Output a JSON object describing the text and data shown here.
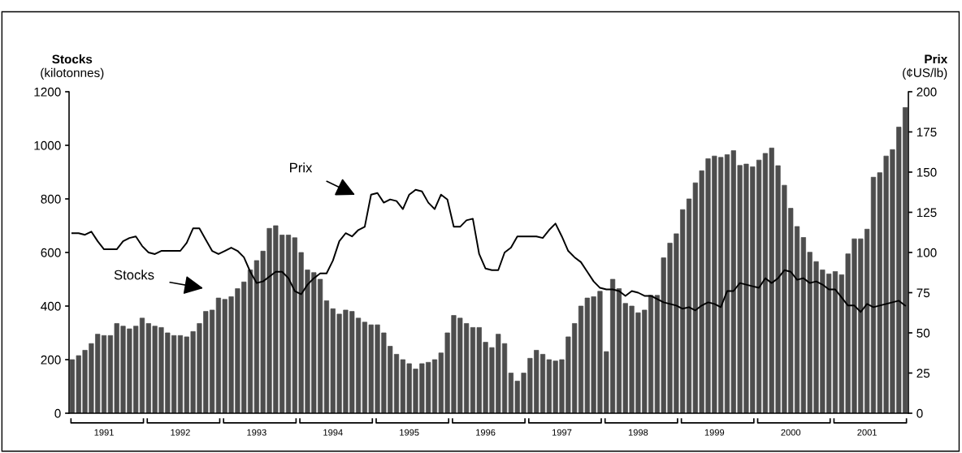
{
  "chart_data": {
    "type": "bar",
    "categories": [
      null,
      null,
      null,
      null,
      null,
      "1991",
      null,
      null,
      null,
      null,
      null,
      null,
      null,
      null,
      null,
      null,
      null,
      "1992",
      null,
      null,
      null,
      null,
      null,
      null,
      null,
      null,
      null,
      null,
      null,
      "1993",
      null,
      null,
      null,
      null,
      null,
      null,
      null,
      null,
      null,
      null,
      null,
      "1994",
      null,
      null,
      null,
      null,
      null,
      null,
      null,
      null,
      null,
      null,
      null,
      "1995",
      null,
      null,
      null,
      null,
      null,
      null,
      null,
      null,
      null,
      null,
      null,
      "1996",
      null,
      null,
      null,
      null,
      null,
      null,
      null,
      null,
      null,
      null,
      null,
      "1997",
      null,
      null,
      null,
      null,
      null,
      null,
      null,
      null,
      null,
      null,
      null,
      "1998",
      null,
      null,
      null,
      null,
      null,
      null,
      null,
      null,
      null,
      null,
      null,
      "1999",
      null,
      null,
      null,
      null,
      null,
      null,
      null,
      null,
      null,
      null,
      null,
      "2000",
      null,
      null,
      null,
      null,
      null,
      null,
      null,
      null,
      null,
      null,
      null,
      "2001",
      null,
      null,
      null,
      null,
      null,
      null
    ],
    "series": [
      {
        "color": "#4d4d4d",
        "values": [
          200,
          215,
          235,
          260,
          295,
          290,
          290,
          335,
          325,
          315,
          325,
          355,
          335,
          325,
          320,
          300,
          290,
          290,
          285,
          305,
          335,
          380,
          385,
          430,
          425,
          435,
          465,
          490,
          535,
          570,
          605,
          690,
          700,
          665,
          665,
          655,
          600,
          535,
          525,
          500,
          420,
          390,
          370,
          385,
          380,
          355,
          340,
          330,
          330,
          300,
          250,
          220,
          200,
          185,
          165,
          185,
          190,
          200,
          225,
          300,
          365,
          355,
          335,
          320,
          320,
          265,
          245,
          295,
          260,
          150,
          120,
          150,
          205,
          235,
          220,
          200,
          195,
          200,
          285,
          335,
          400,
          430,
          435,
          455,
          230,
          500,
          465,
          410,
          400,
          375,
          385,
          440,
          440,
          580,
          635,
          670,
          760,
          800,
          860,
          905,
          950,
          960,
          955,
          965,
          980,
          925,
          930,
          920,
          945,
          970,
          990,
          924,
          851,
          765,
          697,
          656,
          601,
          566,
          535,
          520,
          529,
          517,
          595,
          651,
          651,
          687,
          881,
          898,
          960,
          984,
          1068,
          1141
        ]
      },
      {
        "type": "line",
        "axis": "y2",
        "color": "#000000",
        "values": [
          112,
          112,
          111,
          113,
          107,
          102,
          102,
          102,
          107,
          109,
          110,
          104,
          100,
          99,
          101,
          101,
          101,
          101,
          106,
          115,
          115,
          108,
          101,
          99,
          101,
          103,
          101,
          97,
          88,
          81,
          82,
          85,
          88,
          88,
          84,
          76,
          74,
          80,
          84,
          87,
          87,
          95,
          107,
          112,
          110,
          114,
          116,
          136,
          137,
          131,
          133,
          132,
          127,
          136,
          139,
          138,
          131,
          127,
          136,
          133,
          116,
          116,
          120,
          121,
          99,
          90,
          89,
          89,
          100,
          103,
          110,
          110,
          110,
          110,
          109,
          114,
          118,
          110,
          101,
          97,
          94,
          88,
          82,
          78,
          77,
          77,
          76,
          73,
          76,
          75,
          73,
          73,
          71,
          69,
          68,
          67,
          65,
          66,
          64,
          67,
          69,
          68,
          66,
          76,
          76,
          81,
          80,
          79,
          78,
          84,
          81,
          84,
          89,
          88,
          83,
          84,
          81,
          82,
          80,
          77,
          77,
          72,
          67,
          67,
          63,
          68,
          66,
          67,
          68,
          69,
          70,
          67
        ]
      }
    ],
    "ylabel": "Stocks\n(kilotonnes)",
    "y2label": "Prix\n(¢US/lb)",
    "ylim": [
      0,
      1200
    ],
    "yticks": [
      0,
      200,
      400,
      600,
      800,
      1000,
      1200
    ],
    "y2lim": [
      0,
      200
    ],
    "y2ticks": [
      0,
      25,
      50,
      75,
      100,
      125,
      150,
      175,
      200
    ],
    "annotations": [
      "Prix",
      "Stocks"
    ],
    "grid": false,
    "legend": false
  }
}
